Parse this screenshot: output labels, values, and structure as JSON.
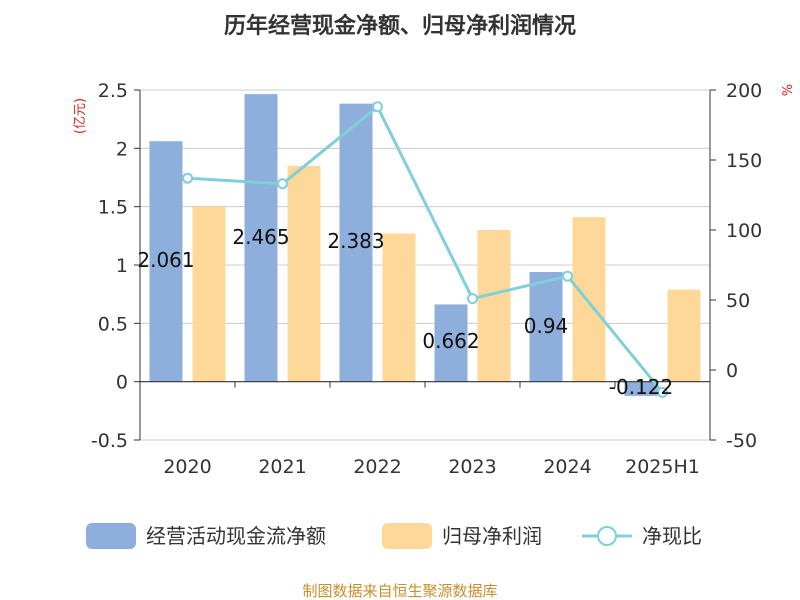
{
  "title": "历年经营现金净额、归母净利润情况",
  "footer": "制图数据来自恒生聚源数据库",
  "chart_data": {
    "type": "bar",
    "categories": [
      "2020",
      "2021",
      "2022",
      "2023",
      "2024",
      "2025H1"
    ],
    "series": [
      {
        "name": "经营活动现金流净额",
        "kind": "bar",
        "axis": "left",
        "color": "#8eaedb",
        "values": [
          2.061,
          2.465,
          2.383,
          0.662,
          0.94,
          -0.122
        ],
        "labels": [
          "2.061",
          "2.465",
          "2.383",
          "0.662",
          "0.94",
          "-0.122"
        ]
      },
      {
        "name": "归母净利润",
        "kind": "bar",
        "axis": "left",
        "color": "#fed899",
        "values": [
          1.5,
          1.85,
          1.27,
          1.3,
          1.41,
          0.79
        ]
      },
      {
        "name": "净现比",
        "kind": "line",
        "axis": "right",
        "color": "#7fd0d8",
        "values": [
          137,
          133,
          188,
          51,
          67,
          -16
        ]
      }
    ],
    "left_axis": {
      "unit": "(亿元)",
      "min": -0.5,
      "max": 2.5,
      "ticks": [
        {
          "value": 2.5,
          "label": "2.5"
        },
        {
          "value": 2,
          "label": "2"
        },
        {
          "value": 1.5,
          "label": "1.5"
        },
        {
          "value": 1,
          "label": "1"
        },
        {
          "value": 0.5,
          "label": "0.5"
        },
        {
          "value": 0,
          "label": "0"
        },
        {
          "value": -0.5,
          "label": "-0.5"
        }
      ]
    },
    "right_axis": {
      "unit": "%",
      "min": -50,
      "max": 200,
      "ticks": [
        {
          "value": 200,
          "label": "200"
        },
        {
          "value": 150,
          "label": "150"
        },
        {
          "value": 100,
          "label": "100"
        },
        {
          "value": 50,
          "label": "50"
        },
        {
          "value": 0,
          "label": "0"
        },
        {
          "value": -50,
          "label": "-50"
        }
      ]
    },
    "grid": true,
    "legend_position": "bottom"
  }
}
